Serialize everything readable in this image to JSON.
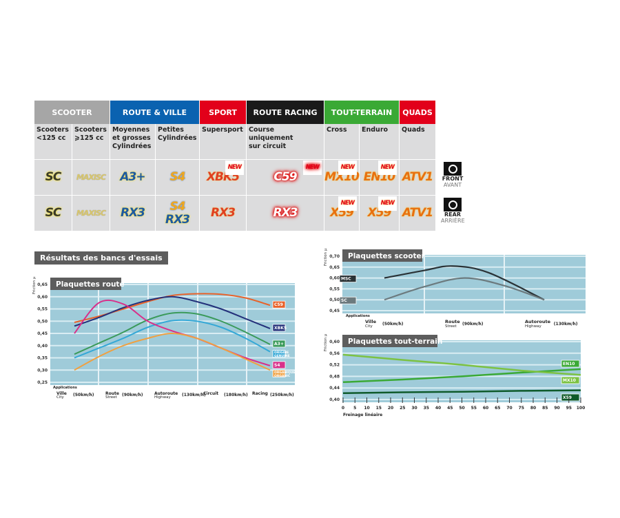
{
  "table": {
    "headers": [
      {
        "label": "SCOOTER",
        "color": "#a6a6a6"
      },
      {
        "label": "ROUTE & VILLE",
        "color": "#0a62b0"
      },
      {
        "label": "SPORT",
        "color": "#e2001a"
      },
      {
        "label": "ROUTE RACING",
        "color": "#1a1a1a"
      },
      {
        "label": "TOUT-TERRAIN",
        "color": "#3aa935"
      },
      {
        "label": "QUADS",
        "color": "#e2001a"
      }
    ],
    "columns": [
      {
        "desc": "Scooters\n<125 cc",
        "front": "SC",
        "rear": "SC",
        "style": "sc"
      },
      {
        "desc": "Scooters\n⩾125 cc",
        "front": "MAXI SC",
        "rear": "MAXI SC",
        "style": "maxi"
      },
      {
        "desc": "Moyennes\net grosses\nCylindrées",
        "front": "A3+",
        "rear": "RX3",
        "style": "blue"
      },
      {
        "desc": "Petites\nCylindrées",
        "front": "S4",
        "rear": "S4 RX3",
        "style": "s4"
      },
      {
        "desc": "Supersport",
        "front": "XBK5",
        "rear": "RX3",
        "front_new": "NEW",
        "style": "red"
      },
      {
        "desc": "Course\nuniquement\nsur circuit",
        "front": "C59",
        "rear": "RX3",
        "front_new": "NEW",
        "style": "c59"
      },
      {
        "desc": "Cross",
        "front": "MX10",
        "rear": "X59",
        "front_new": "NEW",
        "rear_new": "NEW",
        "style": "orange"
      },
      {
        "desc": "Enduro",
        "front": "EN10",
        "rear": "X59",
        "front_new": "NEW",
        "rear_new": "NEW",
        "style": "orange"
      },
      {
        "desc": "Quads",
        "front": "ATV1",
        "rear": "ATV1",
        "style": "orange"
      }
    ],
    "front_label": "FRONT",
    "front_sub": "AVANT",
    "rear_label": "REAR",
    "rear_sub": "ARRIÈRE"
  },
  "section_title": "Résultats des bancs d'essais",
  "chart_data": [
    {
      "type": "line",
      "title": "Plaquettes route",
      "ylabel": "Friction µ",
      "ylim": [
        0.25,
        0.65
      ],
      "yticks": [
        "0,25",
        "0,30",
        "0,35",
        "0,40",
        "0,45",
        "0,50",
        "0,55",
        "0,60",
        "0,65"
      ],
      "xlabel": "Applications",
      "categories": [
        {
          "main": "Ville",
          "sub": "City",
          "speed": "(50km/h)"
        },
        {
          "main": "Route",
          "sub": "Street",
          "speed": "(90km/h)"
        },
        {
          "main": "Autoroute",
          "sub": "Highway",
          "speed": "(130km/h)"
        },
        {
          "main": "Circuit",
          "sub": "",
          "speed": "(180km/h)"
        },
        {
          "main": "Racing",
          "sub": "",
          "speed": "(250km/h)"
        }
      ],
      "x": [
        0,
        0.5,
        1,
        1.5,
        2,
        2.5,
        3,
        3.5,
        4
      ],
      "series": [
        {
          "name": "C59",
          "color": "#e8622a",
          "values": [
            0.495,
            0.52,
            0.55,
            0.58,
            0.605,
            0.612,
            0.61,
            0.595,
            0.565
          ]
        },
        {
          "name": "XBK5",
          "color": "#23307a",
          "values": [
            0.48,
            0.515,
            0.555,
            0.585,
            0.6,
            0.58,
            0.55,
            0.51,
            0.47
          ]
        },
        {
          "name": "A3+",
          "color": "#3a9a5a",
          "values": [
            0.365,
            0.41,
            0.455,
            0.505,
            0.533,
            0.53,
            0.5,
            0.455,
            0.405
          ]
        },
        {
          "name": "ORIGINE GENUINE",
          "color": "#35a8d6",
          "values": [
            0.35,
            0.39,
            0.43,
            0.475,
            0.502,
            0.5,
            0.475,
            0.43,
            0.375
          ]
        },
        {
          "name": "S4",
          "color": "#d8308a",
          "values": [
            0.45,
            0.575,
            0.57,
            0.5,
            0.46,
            0.43,
            0.39,
            0.35,
            0.318
          ]
        },
        {
          "name": "ORGANIQUE ORGANIC",
          "color": "#f0a040",
          "values": [
            0.3,
            0.355,
            0.4,
            0.43,
            0.45,
            0.43,
            0.39,
            0.345,
            0.3
          ]
        }
      ]
    },
    {
      "type": "line",
      "title": "Plaquettes scooter",
      "ylabel": "Friction µ",
      "ylim": [
        0.45,
        0.7
      ],
      "yticks": [
        "0,45",
        "0,50",
        "0,55",
        "0,60",
        "0,65",
        "0,70"
      ],
      "xlabel": "Applications",
      "categories": [
        {
          "main": "Ville",
          "sub": "City",
          "speed": "(50km/h)"
        },
        {
          "main": "Route",
          "sub": "Street",
          "speed": "(90km/h)"
        },
        {
          "main": "Autoroute",
          "sub": "Highway",
          "speed": "(130km/h)"
        }
      ],
      "series": [
        {
          "name": "MSC",
          "color": "#2a3236",
          "x": [
            0,
            0.5,
            0.85,
            1.3,
            2
          ],
          "values": [
            0.6,
            0.635,
            0.655,
            0.625,
            0.5
          ]
        },
        {
          "name": "SC",
          "color": "#6c7a7e",
          "x": [
            0,
            0.5,
            1,
            1.5,
            2
          ],
          "values": [
            0.5,
            0.56,
            0.6,
            0.565,
            0.5
          ]
        }
      ]
    },
    {
      "type": "line",
      "title": "Plaquettes tout-terrain",
      "ylabel": "Friction µ",
      "ylim": [
        0.4,
        0.6
      ],
      "yticks": [
        "0,40",
        "0,44",
        "0,48",
        "0,52",
        "0,56",
        "0,60"
      ],
      "xlabel": "Freinage linéaire",
      "xlim": [
        0,
        100
      ],
      "xticks": [
        0,
        5,
        10,
        15,
        20,
        25,
        30,
        35,
        40,
        45,
        50,
        55,
        60,
        65,
        70,
        75,
        80,
        85,
        90,
        95,
        100
      ],
      "x": [
        0,
        25,
        50,
        75,
        100
      ],
      "series": [
        {
          "name": "EN10",
          "color": "#3aa935",
          "values": [
            0.46,
            0.469,
            0.48,
            0.493,
            0.505
          ]
        },
        {
          "name": "MX10",
          "color": "#7cc242",
          "values": [
            0.555,
            0.537,
            0.52,
            0.5,
            0.485
          ]
        },
        {
          "name": "X59",
          "color": "#0e5a2a",
          "values": [
            0.422,
            0.425,
            0.427,
            0.43,
            0.432
          ]
        }
      ]
    }
  ]
}
